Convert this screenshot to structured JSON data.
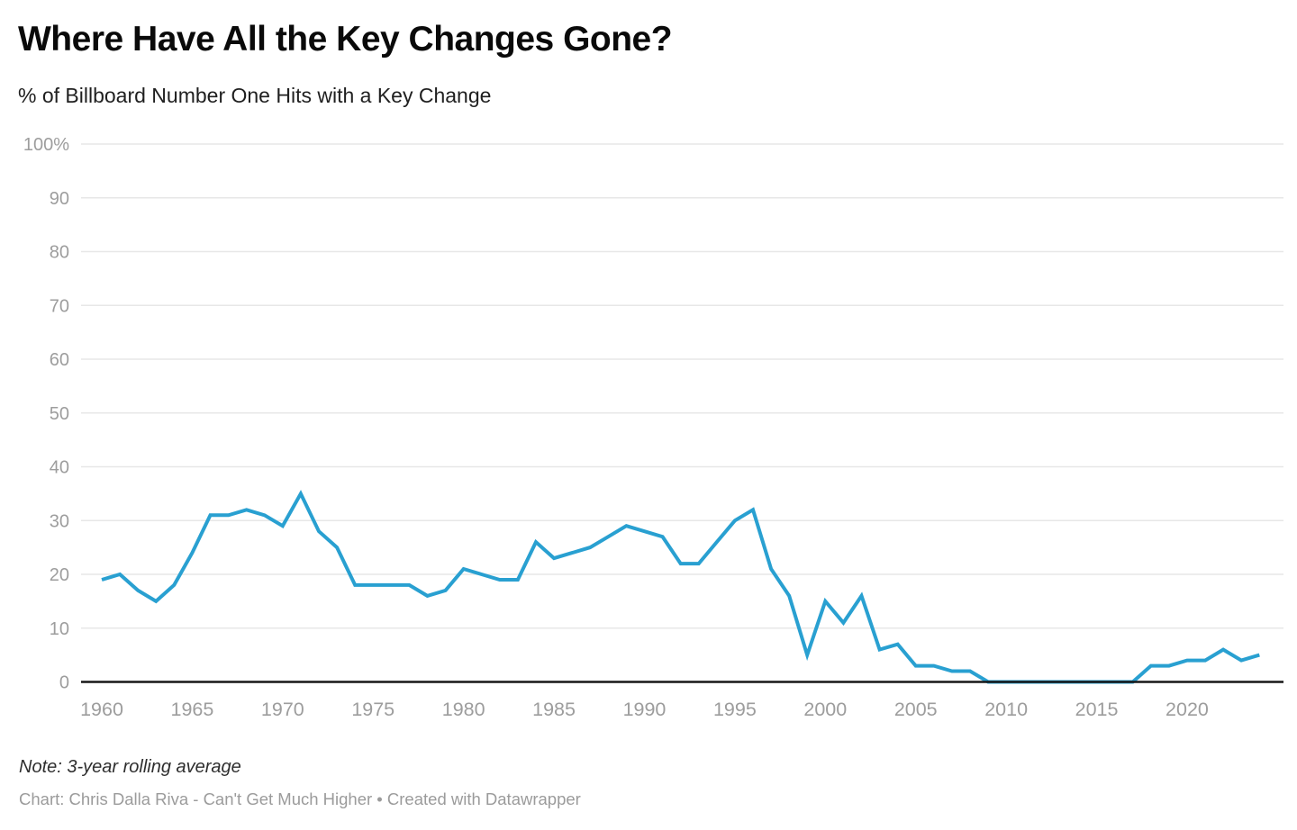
{
  "header": {
    "title": "Where Have All the Key Changes Gone?",
    "subtitle": "% of Billboard Number One Hits with a Key Change"
  },
  "footer": {
    "note": "Note: 3-year rolling average",
    "credit": "Chart: Chris Dalla Riva - Can't Get Much Higher • Created with Datawrapper"
  },
  "chart_data": {
    "type": "line",
    "title": "Where Have All the Key Changes Gone?",
    "subtitle": "% of Billboard Number One Hits with a Key Change",
    "xlabel": "",
    "ylabel": "",
    "x": [
      1960,
      1961,
      1962,
      1963,
      1964,
      1965,
      1966,
      1967,
      1968,
      1969,
      1970,
      1971,
      1972,
      1973,
      1974,
      1975,
      1976,
      1977,
      1978,
      1979,
      1980,
      1981,
      1982,
      1983,
      1984,
      1985,
      1986,
      1987,
      1988,
      1989,
      1990,
      1991,
      1992,
      1993,
      1994,
      1995,
      1996,
      1997,
      1998,
      1999,
      2000,
      2001,
      2002,
      2003,
      2004,
      2005,
      2006,
      2007,
      2008,
      2009,
      2010,
      2011,
      2012,
      2013,
      2014,
      2015,
      2016,
      2017,
      2018,
      2019,
      2020,
      2021,
      2022,
      2023,
      2024
    ],
    "series": [
      {
        "name": "% of Billboard Number One Hits with a Key Change",
        "values": [
          19,
          20,
          17,
          15,
          18,
          24,
          31,
          31,
          32,
          31,
          29,
          35,
          28,
          25,
          18,
          18,
          18,
          18,
          16,
          17,
          21,
          20,
          19,
          19,
          26,
          23,
          24,
          25,
          27,
          29,
          28,
          27,
          22,
          22,
          26,
          30,
          32,
          21,
          16,
          5,
          15,
          11,
          16,
          6,
          7,
          3,
          3,
          2,
          2,
          0,
          0,
          0,
          0,
          0,
          0,
          0,
          0,
          0,
          3,
          3,
          4,
          4,
          6,
          4,
          5
        ]
      }
    ],
    "xlim": [
      1958.8,
      2025.3
    ],
    "ylim": [
      0,
      100
    ],
    "xticks": [
      1960,
      1965,
      1970,
      1975,
      1980,
      1985,
      1990,
      1995,
      2000,
      2005,
      2010,
      2015,
      2020
    ],
    "ytick_values": [
      100,
      90,
      80,
      70,
      60,
      50,
      40,
      30,
      20,
      10,
      0
    ],
    "ytick_labels": [
      "100%",
      "90",
      "80",
      "70",
      "60",
      "50",
      "40",
      "30",
      "20",
      "10",
      "0"
    ],
    "grid": "horizontal",
    "legend": "none",
    "line_color": "#29a0d1",
    "grid_color": "#e7e7e7",
    "axis_color": "#171717",
    "tick_label_color": "#9d9d9d"
  }
}
